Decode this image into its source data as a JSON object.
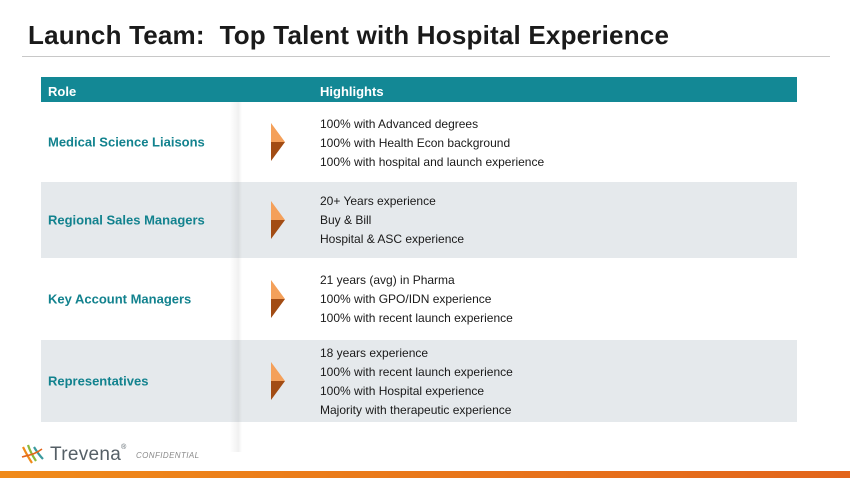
{
  "slide": {
    "title": "Launch Team:  Top Talent with Hospital Experience"
  },
  "table": {
    "headers": {
      "role": "Role",
      "highlights": "Highlights"
    },
    "rows": [
      {
        "role": "Medical Science Liaisons",
        "highlights": [
          "100% with Advanced degrees",
          "100% with Health Econ background",
          "100% with hospital and launch experience"
        ]
      },
      {
        "role": "Regional Sales Managers",
        "highlights": [
          "20+ Years experience",
          "Buy & Bill",
          "Hospital & ASC experience"
        ]
      },
      {
        "role": "Key Account Managers",
        "highlights": [
          "21 years (avg) in Pharma",
          "100% with GPO/IDN experience",
          "100% with recent launch experience"
        ]
      },
      {
        "role": "Representatives",
        "highlights": [
          "18 years experience",
          "100% with recent launch experience",
          "100% with Hospital experience",
          "Majority with therapeutic experience"
        ]
      }
    ]
  },
  "footer": {
    "logo_text": "Trevena",
    "trademark": "®",
    "confidential": "CONFIDENTIAL"
  },
  "colors": {
    "header_bg": "#138895",
    "role_text": "#12828e",
    "row_shade": "#e5e9ec",
    "arrow_light": "#f4a05a",
    "arrow_dark": "#a24c14",
    "bottom_bar": "#f08a1a"
  },
  "icons": {
    "row_marker": "chevron-arrow-icon",
    "logo": "trevena-logo-icon"
  }
}
